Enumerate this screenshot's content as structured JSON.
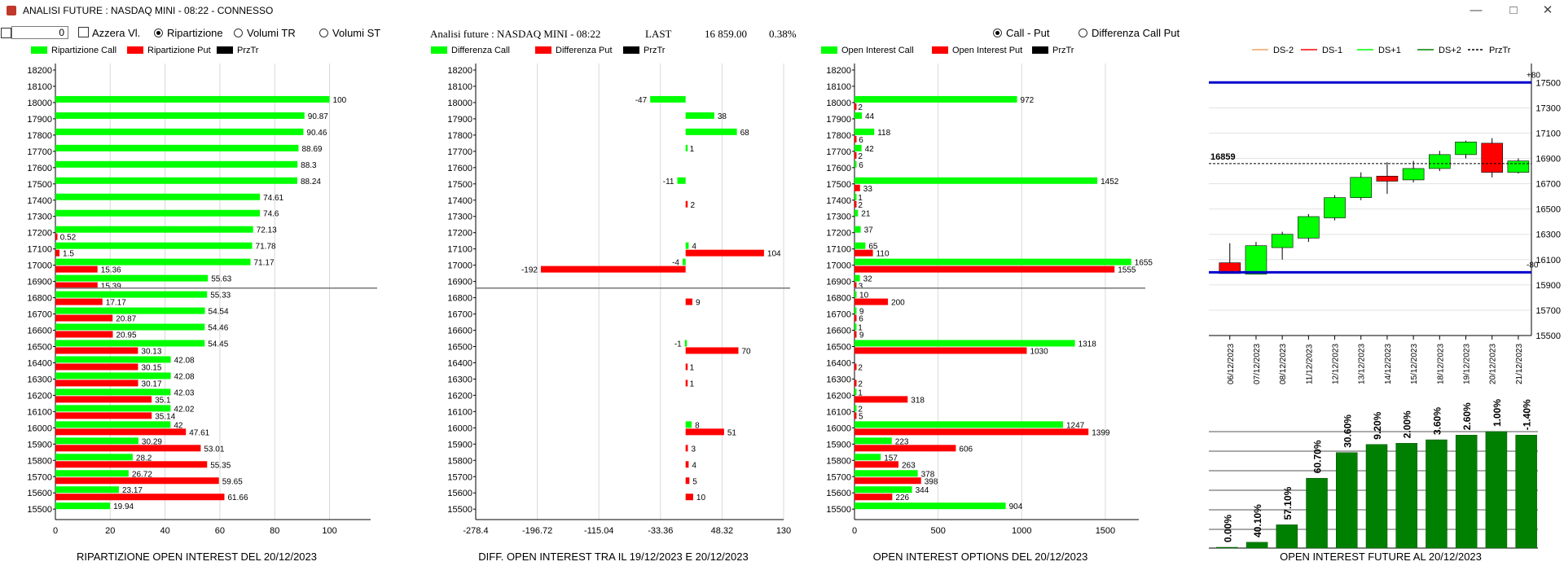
{
  "window": {
    "title": "ANALISI FUTURE : NASDAQ MINI - 08:22 - CONNESSO",
    "minimize": "—",
    "maximize": "□",
    "close": "✕"
  },
  "toolbar": {
    "value": "0",
    "azzera_label": "Azzera Vl.",
    "ripartizione_label": "Ripartizione",
    "volumi_tr_label": "Volumi TR",
    "volumi_st_label": "Volumi ST",
    "selected": "Ripartizione"
  },
  "header": {
    "analisi": "Analisi future : NASDAQ MINI - 08:22",
    "last_label": "LAST",
    "last_value": "16 859.00",
    "last_change": "0.38%"
  },
  "mode": {
    "call_put_label": "Call - Put",
    "diff_label": "Differenza Call Put",
    "selected": "Call - Put"
  },
  "colors": {
    "green": "#00ff00",
    "red": "#ff0000",
    "dark_green": "#008000",
    "blue": "#0000cc",
    "grid": "#d8d8d8"
  },
  "chart_data": [
    {
      "type": "bar",
      "title": "RIPARTIZIONE OPEN INTEREST DEL 20/12/2023",
      "legend": [
        "Ripartizione Call",
        "Ripartizione Put",
        "PrzTr"
      ],
      "categories": [
        "18200",
        "18100",
        "18000",
        "17900",
        "17800",
        "17700",
        "17600",
        "17500",
        "17400",
        "17300",
        "17200",
        "17100",
        "17000",
        "16900",
        "16800",
        "16700",
        "16600",
        "16500",
        "16400",
        "16300",
        "16200",
        "16100",
        "16000",
        "15900",
        "15800",
        "15700",
        "15600",
        "15500"
      ],
      "series": [
        {
          "name": "Ripartizione Call",
          "values": [
            null,
            null,
            100,
            90.87,
            90.46,
            88.69,
            88.3,
            88.24,
            74.61,
            74.6,
            72.13,
            71.78,
            71.17,
            55.63,
            55.33,
            54.54,
            54.46,
            54.45,
            42.08,
            42.08,
            42.03,
            42.02,
            42,
            30.29,
            28.2,
            26.72,
            23.17,
            19.94
          ]
        },
        {
          "name": "Ripartizione Put",
          "values": [
            null,
            null,
            null,
            null,
            null,
            null,
            null,
            null,
            null,
            null,
            0.52,
            1.5,
            15.36,
            15.39,
            17.17,
            20.87,
            20.95,
            30.13,
            30.15,
            30.17,
            35.1,
            35.14,
            47.61,
            53.01,
            55.35,
            59.65,
            61.66,
            null
          ]
        }
      ],
      "price_level": 16859,
      "xticks": [
        0,
        20,
        40,
        60,
        80,
        100
      ],
      "xlim": [
        0,
        115
      ]
    },
    {
      "type": "bar",
      "title": "DIFF. OPEN INTEREST TRA IL 19/12/2023 E 20/12/2023",
      "legend": [
        "Differenza Call",
        "Differenza Put",
        "PrzTr"
      ],
      "categories": [
        "18200",
        "18100",
        "18000",
        "17900",
        "17800",
        "17700",
        "17600",
        "17500",
        "17400",
        "17300",
        "17200",
        "17100",
        "17000",
        "16900",
        "16800",
        "16700",
        "16600",
        "16500",
        "16400",
        "16300",
        "16200",
        "16100",
        "16000",
        "15900",
        "15800",
        "15700",
        "15600",
        "15500"
      ],
      "series": [
        {
          "name": "Differenza Call",
          "values": [
            null,
            null,
            -47,
            38,
            68,
            1,
            null,
            -11,
            null,
            null,
            null,
            4,
            -4,
            null,
            null,
            null,
            null,
            -1,
            null,
            null,
            null,
            null,
            8,
            null,
            null,
            null,
            null,
            null
          ]
        },
        {
          "name": "Differenza Put",
          "values": [
            null,
            null,
            null,
            null,
            null,
            null,
            null,
            null,
            2,
            null,
            null,
            104,
            -192,
            null,
            9,
            null,
            null,
            70,
            1,
            1,
            null,
            null,
            51,
            3,
            4,
            5,
            10,
            null
          ]
        }
      ],
      "price_level": 16859,
      "xticks": [
        "-278.4",
        "-196.72",
        "-115.04",
        "-33.36",
        "48.32",
        "130"
      ],
      "xlim": [
        -278.4,
        130
      ]
    },
    {
      "type": "bar",
      "title": "OPEN INTEREST OPTIONS DEL 20/12/2023",
      "legend": [
        "Open Interest Call",
        "Open Interest Put",
        "PrzTr"
      ],
      "categories": [
        "18200",
        "18100",
        "18000",
        "17900",
        "17800",
        "17700",
        "17600",
        "17500",
        "17400",
        "17300",
        "17200",
        "17100",
        "17000",
        "16900",
        "16800",
        "16700",
        "16600",
        "16500",
        "16400",
        "16300",
        "16200",
        "16100",
        "16000",
        "15900",
        "15800",
        "15700",
        "15600",
        "15500"
      ],
      "series": [
        {
          "name": "Open Interest Call",
          "values": [
            null,
            null,
            972,
            44,
            118,
            42,
            6,
            1452,
            1,
            21,
            37,
            65,
            1655,
            32,
            10,
            9,
            1,
            1318,
            null,
            null,
            1,
            2,
            1247,
            223,
            157,
            378,
            344,
            904
          ]
        },
        {
          "name": "Open Interest Put",
          "values": [
            null,
            null,
            2,
            null,
            6,
            2,
            null,
            33,
            2,
            null,
            null,
            110,
            1555,
            3,
            200,
            6,
            9,
            1030,
            2,
            2,
            318,
            5,
            1399,
            606,
            263,
            398,
            226,
            null
          ]
        }
      ],
      "price_level": 16859,
      "xticks": [
        0,
        500,
        1000,
        1500
      ],
      "xlim": [
        0,
        1700
      ]
    },
    {
      "type": "candlestick",
      "legend": [
        "DS-2",
        "DS-1",
        "DS+1",
        "DS+2",
        "PrzTr"
      ],
      "dates": [
        "06/12/2023",
        "07/12/2023",
        "08/12/2023",
        "11/12/2023",
        "12/12/2023",
        "13/12/2023",
        "14/12/2023",
        "15/12/2023",
        "18/12/2023",
        "19/12/2023",
        "20/12/2023",
        "21/12/2023"
      ],
      "candles": [
        {
          "open": 16075,
          "close": 15990,
          "high": 16230,
          "low": 15990
        },
        {
          "open": 15985,
          "close": 16210,
          "high": 16240,
          "low": 15985
        },
        {
          "open": 16195,
          "close": 16300,
          "high": 16320,
          "low": 16100
        },
        {
          "open": 16270,
          "close": 16440,
          "high": 16460,
          "low": 16240
        },
        {
          "open": 16430,
          "close": 16590,
          "high": 16610,
          "low": 16410
        },
        {
          "open": 16590,
          "close": 16750,
          "high": 16790,
          "low": 16570
        },
        {
          "open": 16760,
          "close": 16720,
          "high": 16870,
          "low": 16620
        },
        {
          "open": 16730,
          "close": 16820,
          "high": 16880,
          "low": 16710
        },
        {
          "open": 16820,
          "close": 16930,
          "high": 16960,
          "low": 16800
        },
        {
          "open": 16930,
          "close": 17030,
          "high": 17040,
          "low": 16900
        },
        {
          "open": 17020,
          "close": 16790,
          "high": 17060,
          "low": 16750
        },
        {
          "open": 16790,
          "close": 16880,
          "high": 16900,
          "low": 16780
        }
      ],
      "price_level": 16859,
      "price_level_label": "16859",
      "upper_line": 17500,
      "lower_line": 16000,
      "upper_label": "+80",
      "lower_label": "-80",
      "yticks": [
        15500,
        15700,
        15900,
        16100,
        16300,
        16500,
        16700,
        16900,
        17100,
        17300,
        17500
      ],
      "ylim": [
        15500,
        17650
      ]
    },
    {
      "type": "bar",
      "title": "OPEN INTEREST FUTURE AL 20/12/2023",
      "value_labels": [
        "0.00%",
        "40.10%",
        "57.10%",
        "60.70%",
        "30.60%",
        "9.20%",
        "2.00%",
        "3.60%",
        "2.60%",
        "1.00%",
        "-1.40%"
      ],
      "values": [
        0,
        40.1,
        57.1,
        60.7,
        30.6,
        9.2,
        2.0,
        3.6,
        2.6,
        1.0,
        -1.4
      ],
      "bar_levels": [
        0,
        0.05,
        0.2,
        0.6,
        0.82,
        0.89,
        0.9,
        0.93,
        0.97,
        1.0,
        0.97
      ]
    }
  ]
}
